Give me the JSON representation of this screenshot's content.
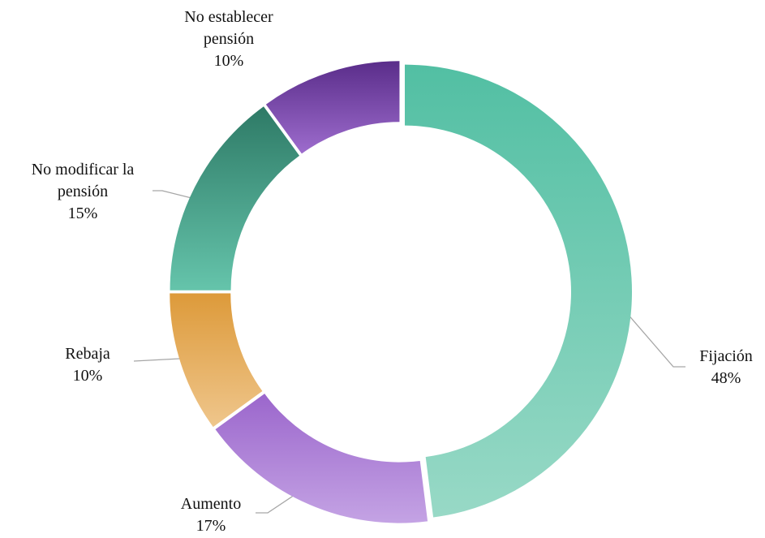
{
  "chart_data": {
    "type": "donut",
    "categories": [
      "Fijación",
      "Aumento",
      "Rebaja",
      "No modificar la pensión",
      "No establecer pensión"
    ],
    "values": [
      48,
      17,
      10,
      15,
      10
    ],
    "value_labels": [
      "48%",
      "17%",
      "10%",
      "15%",
      "10%"
    ],
    "colors": [
      [
        "#52bfa3",
        "#98d9c6"
      ],
      [
        "#9b66cc",
        "#c4a3e4"
      ],
      [
        "#dd9a3a",
        "#efc68c"
      ],
      [
        "#2e7a66",
        "#65c4ab"
      ],
      [
        "#5a2d8a",
        "#9d6ccd"
      ]
    ]
  }
}
